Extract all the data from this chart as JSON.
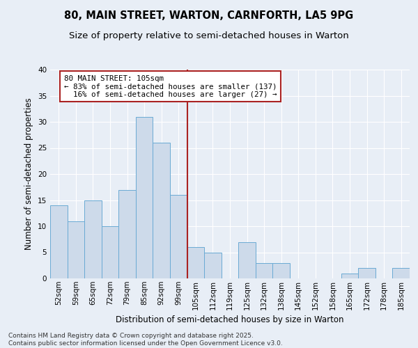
{
  "title": "80, MAIN STREET, WARTON, CARNFORTH, LA5 9PG",
  "subtitle": "Size of property relative to semi-detached houses in Warton",
  "xlabel": "Distribution of semi-detached houses by size in Warton",
  "ylabel": "Number of semi-detached properties",
  "categories": [
    "52sqm",
    "59sqm",
    "65sqm",
    "72sqm",
    "79sqm",
    "85sqm",
    "92sqm",
    "99sqm",
    "105sqm",
    "112sqm",
    "119sqm",
    "125sqm",
    "132sqm",
    "138sqm",
    "145sqm",
    "152sqm",
    "158sqm",
    "165sqm",
    "172sqm",
    "178sqm",
    "185sqm"
  ],
  "values": [
    14,
    11,
    15,
    10,
    17,
    31,
    26,
    16,
    6,
    5,
    0,
    7,
    3,
    3,
    0,
    0,
    0,
    1,
    2,
    0,
    2
  ],
  "bar_color": "#cddaea",
  "bar_edge_color": "#6aaad4",
  "highlight_line_color": "#aa2222",
  "annotation_text": "80 MAIN STREET: 105sqm\n← 83% of semi-detached houses are smaller (137)\n  16% of semi-detached houses are larger (27) →",
  "annotation_box_color": "#ffffff",
  "annotation_box_edge_color": "#aa2222",
  "footer_text": "Contains HM Land Registry data © Crown copyright and database right 2025.\nContains public sector information licensed under the Open Government Licence v3.0.",
  "ylim": [
    0,
    40
  ],
  "background_color": "#e8eef6",
  "grid_color": "#ffffff",
  "title_fontsize": 10.5,
  "subtitle_fontsize": 9.5,
  "axis_label_fontsize": 8.5,
  "tick_fontsize": 7.5,
  "footer_fontsize": 6.5,
  "annotation_fontsize": 7.8
}
